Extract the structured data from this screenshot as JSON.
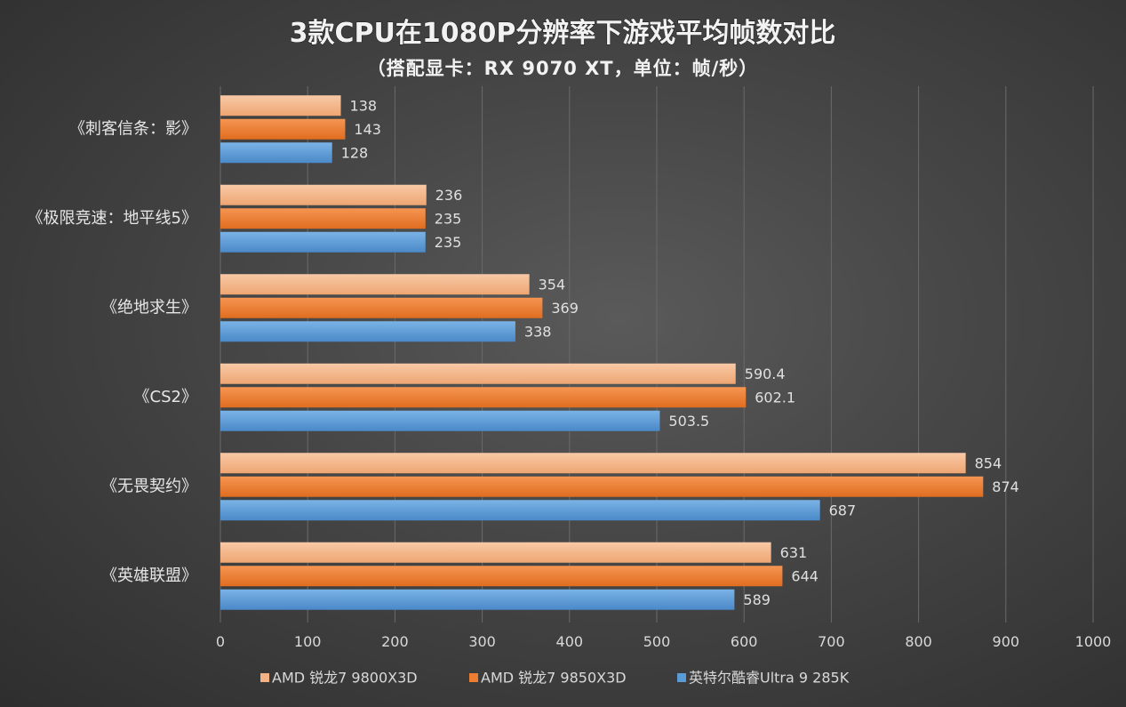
{
  "chart_data": {
    "type": "bar",
    "orientation": "horizontal",
    "title": "3款CPU在1080P分辨率下游戏平均帧数对比",
    "subtitle": "（搭配显卡：RX 9070 XT，单位：帧/秒）",
    "categories": [
      "《刺客信条：影》",
      "《极限竞速：地平线5》",
      "《绝地求生》",
      "《CS2》",
      "《无畏契约》",
      "《英雄联盟》"
    ],
    "series": [
      {
        "name": "AMD 锐龙7 9800X3D",
        "color": "#f4b183",
        "values": [
          138,
          236,
          354,
          590.4,
          854,
          631
        ],
        "labels": [
          "138",
          "236",
          "354",
          "590.4",
          "854",
          "631"
        ]
      },
      {
        "name": "AMD 锐龙7 9850X3D",
        "color": "#ed7d31",
        "values": [
          143,
          235,
          369,
          602.1,
          874,
          644
        ],
        "labels": [
          "143",
          "235",
          "369",
          "602.1",
          "874",
          "644"
        ]
      },
      {
        "name": "英特尔酷睿Ultra 9 285K",
        "color": "#5b9bd5",
        "values": [
          128,
          235,
          338,
          503.5,
          687,
          589
        ],
        "labels": [
          "128",
          "235",
          "338",
          "503.5",
          "687",
          "589"
        ]
      }
    ],
    "xlim": [
      0,
      1000
    ],
    "xticks": [
      "0",
      "100",
      "200",
      "300",
      "400",
      "500",
      "600",
      "700",
      "800",
      "900",
      "1000"
    ],
    "grid": true,
    "legend": "bottom",
    "xlabel": "",
    "ylabel": ""
  }
}
